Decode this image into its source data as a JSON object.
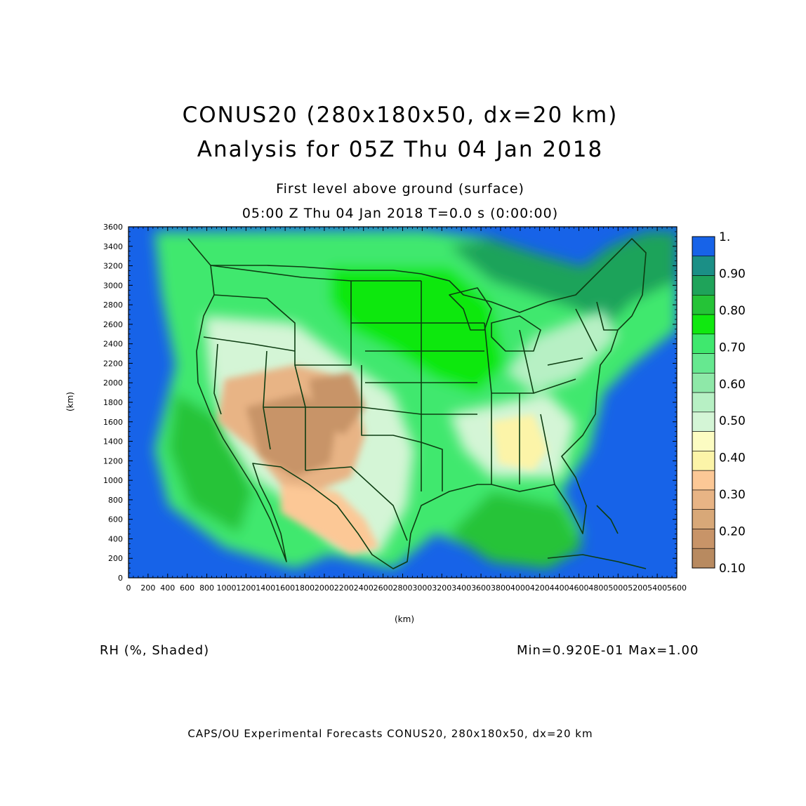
{
  "header": {
    "title_line1": "CONUS20 (280x180x50, dx=20 km)",
    "title_line2": "Analysis for 05Z Thu 04 Jan 2018",
    "level": "First level above ground (surface)",
    "valid_time": "05:00 Z Thu 04 Jan 2018    T=0.0 s (0:00:00)"
  },
  "axes": {
    "x_label": "(km)",
    "y_label": "(km)",
    "x_ticks": [
      "0",
      "200",
      "400",
      "600",
      "800",
      "1000",
      "1200",
      "1400",
      "1600",
      "1800",
      "2000",
      "2200",
      "2400",
      "2600",
      "2800",
      "3000",
      "3200",
      "3400",
      "3600",
      "3800",
      "4000",
      "4200",
      "4400",
      "4600",
      "4800",
      "5000",
      "5200",
      "5400",
      "5600"
    ],
    "y_ticks": [
      "0",
      "200",
      "400",
      "600",
      "800",
      "1000",
      "1200",
      "1400",
      "1600",
      "1800",
      "2000",
      "2200",
      "2400",
      "2600",
      "2800",
      "3000",
      "3200",
      "3400",
      "3600"
    ]
  },
  "colorbar": {
    "labels": [
      "1.",
      "0.90",
      "0.80",
      "0.70",
      "0.60",
      "0.50",
      "0.40",
      "0.30",
      "0.20",
      "0.10"
    ],
    "colors": [
      "#1763e8",
      "#1b8f86",
      "#1fa35a",
      "#25c337",
      "#10e810",
      "#3fe86e",
      "#66e890",
      "#8ee8a8",
      "#b7f0c4",
      "#d4f5d6",
      "#fcfcc2",
      "#fcf4a8",
      "#fcc896",
      "#e8b485",
      "#d8a878",
      "#c89468",
      "#b88a60"
    ]
  },
  "footer": {
    "field_label": "RH (%, Shaded)",
    "minmax": "Min=0.920E-01 Max=1.00",
    "credit": "CAPS/OU Experimental Forecasts   CONUS20, 280x180x50, dx=20 km"
  }
}
